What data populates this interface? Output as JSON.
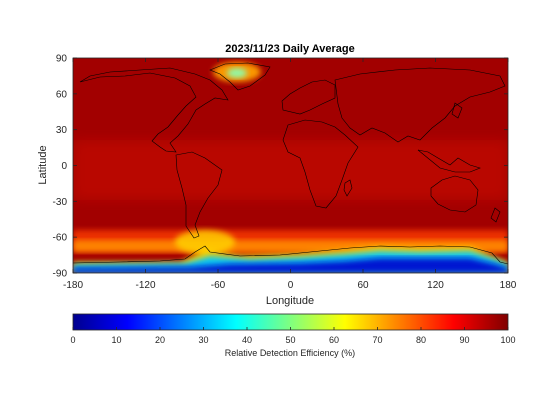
{
  "chart_data": {
    "type": "heatmap",
    "title": "2023/11/23 Daily Average",
    "xlabel": "Longitude",
    "ylabel": "Latitude",
    "xlim": [
      -180,
      180
    ],
    "ylim": [
      -90,
      90
    ],
    "xticks": [
      -180,
      -120,
      -60,
      0,
      60,
      120,
      180
    ],
    "yticks": [
      90,
      60,
      30,
      0,
      -30,
      -60,
      -90
    ],
    "colorbar": {
      "label": "Relative Detection Efficiency (%)",
      "range": [
        0,
        100
      ],
      "ticks": [
        0,
        10,
        20,
        30,
        40,
        50,
        60,
        70,
        80,
        90,
        100
      ],
      "colormap": "jet",
      "orientation": "horizontal",
      "position": "bottom"
    },
    "features": [
      {
        "region": "Antarctica coast",
        "lon_range": [
          -180,
          180
        ],
        "lat_range": [
          -90,
          -66
        ],
        "value_range": [
          5,
          30
        ]
      },
      {
        "region": "Southern Ocean band",
        "lon_range": [
          -180,
          180
        ],
        "lat_range": [
          -66,
          -58
        ],
        "value_range": [
          55,
          90
        ]
      },
      {
        "region": "Drake Passage / Antarctic Peninsula",
        "lon_range": [
          -75,
          -45
        ],
        "lat_range": [
          -70,
          -58
        ],
        "value_range": [
          60,
          75
        ]
      },
      {
        "region": "Greenland",
        "lon_range": [
          -55,
          -30
        ],
        "lat_range": [
          60,
          82
        ],
        "value_range": [
          45,
          80
        ]
      },
      {
        "region": "Equatorial belt",
        "lon_range": [
          -180,
          180
        ],
        "lat_range": [
          -20,
          20
        ],
        "value_range": [
          82,
          92
        ]
      },
      {
        "region": "Mid and high latitudes",
        "lon_range": [
          -180,
          180
        ],
        "lat_range": [
          -50,
          90
        ],
        "value_range": [
          90,
          100
        ]
      }
    ]
  }
}
